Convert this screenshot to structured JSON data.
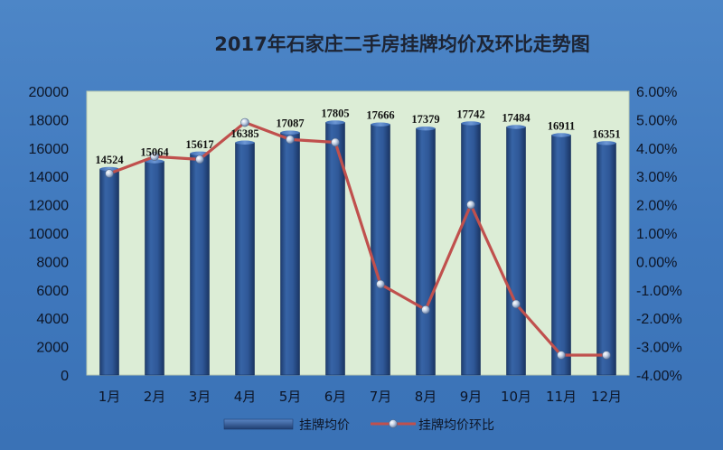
{
  "chart_data": {
    "type": "bar",
    "title": "2017年石家庄二手房挂牌均价及环比走势图",
    "categories": [
      "1月",
      "2月",
      "3月",
      "4月",
      "5月",
      "6月",
      "7月",
      "8月",
      "9月",
      "10月",
      "11月",
      "12月"
    ],
    "series": [
      {
        "name": "挂牌均价",
        "type": "bar",
        "axis": "left",
        "values": [
          14524,
          15064,
          15617,
          16385,
          17087,
          17805,
          17666,
          17379,
          17742,
          17484,
          16911,
          16351
        ],
        "color": "#2b4f8c"
      },
      {
        "name": "挂牌均价环比",
        "type": "line",
        "axis": "right",
        "values": [
          3.1,
          3.7,
          3.6,
          4.9,
          4.3,
          4.2,
          -0.8,
          -1.7,
          2.0,
          -1.5,
          -3.3,
          -3.3
        ],
        "color": "#c0504d"
      }
    ],
    "y_left": {
      "ylim": [
        0,
        20000
      ],
      "ticks": [
        "0",
        "2000",
        "4000",
        "6000",
        "8000",
        "10000",
        "12000",
        "14000",
        "16000",
        "18000",
        "20000"
      ]
    },
    "y_right": {
      "ylim": [
        -4,
        6
      ],
      "ticks": [
        "-4.00%",
        "-3.00%",
        "-2.00%",
        "-1.00%",
        "0.00%",
        "1.00%",
        "2.00%",
        "3.00%",
        "4.00%",
        "5.00%",
        "6.00%"
      ]
    },
    "data_labels": [
      "14524",
      "15064",
      "15617",
      "16385",
      "17087",
      "17805",
      "17666",
      "17379",
      "17742",
      "17484",
      "16911",
      "16351"
    ],
    "grid": false,
    "legend_position": "bottom",
    "plot_background": "#dcedd6",
    "background": "#4a82c4"
  }
}
